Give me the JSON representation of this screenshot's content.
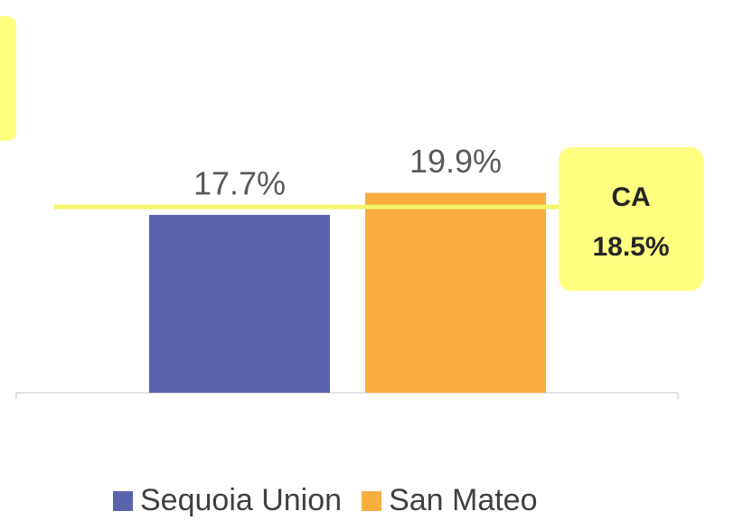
{
  "chart_data": {
    "type": "bar",
    "categories": [
      null
    ],
    "series": [
      {
        "name": "Sequoia Union",
        "color": "#5b63ad",
        "values": [
          17.7
        ],
        "value_labels": [
          "17.7%"
        ]
      },
      {
        "name": "San Mateo",
        "color": "#f9ae3f",
        "values": [
          19.9
        ],
        "value_labels": [
          "19.9%"
        ]
      }
    ],
    "reference_line": {
      "label": "CA",
      "value": 18.5,
      "value_label": "18.5%",
      "color": "#f5f56a"
    },
    "legend": "bottom"
  }
}
